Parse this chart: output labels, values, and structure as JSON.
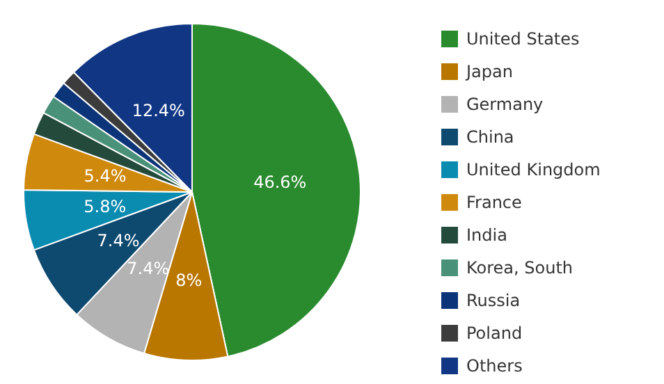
{
  "chart_data": {
    "type": "pie",
    "categories": [
      "United States",
      "Japan",
      "Germany",
      "China",
      "United Kingdom",
      "France",
      "India",
      "Korea, South",
      "Russia",
      "Poland",
      "Others"
    ],
    "values": [
      46.6,
      8,
      7.4,
      7.4,
      5.8,
      5.4,
      2.2,
      1.8,
      1.6,
      1.4,
      12.4
    ],
    "value_labels": [
      "46.6%",
      "8%",
      "7.4%",
      "7.4%",
      "5.8%",
      "5.4%",
      null,
      null,
      null,
      null,
      "12.4%"
    ],
    "colors": [
      "#2a8a2e",
      "#b97700",
      "#b3b3b3",
      "#0e4a70",
      "#0a8bb0",
      "#cf8a0e",
      "#244a3c",
      "#4a917a",
      "#0c3478",
      "#3c3c3c",
      "#103684"
    ],
    "legend": "right"
  }
}
